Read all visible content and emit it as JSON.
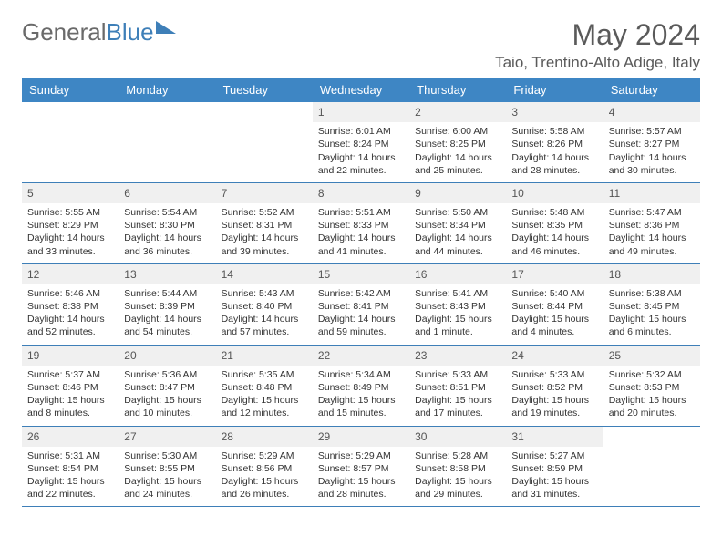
{
  "brand": {
    "part1": "General",
    "part2": "Blue"
  },
  "title": "May 2024",
  "location": "Taio, Trentino-Alto Adige, Italy",
  "colors": {
    "header_bg": "#3e86c4",
    "header_text": "#ffffff",
    "rule": "#3e7fb8",
    "daynum_bg": "#f0f0f0",
    "text": "#333333"
  },
  "dayNames": [
    "Sunday",
    "Monday",
    "Tuesday",
    "Wednesday",
    "Thursday",
    "Friday",
    "Saturday"
  ],
  "weeks": [
    [
      {
        "empty": true
      },
      {
        "empty": true
      },
      {
        "empty": true
      },
      {
        "n": "1",
        "sr": "Sunrise: 6:01 AM",
        "ss": "Sunset: 8:24 PM",
        "dl": "Daylight: 14 hours and 22 minutes."
      },
      {
        "n": "2",
        "sr": "Sunrise: 6:00 AM",
        "ss": "Sunset: 8:25 PM",
        "dl": "Daylight: 14 hours and 25 minutes."
      },
      {
        "n": "3",
        "sr": "Sunrise: 5:58 AM",
        "ss": "Sunset: 8:26 PM",
        "dl": "Daylight: 14 hours and 28 minutes."
      },
      {
        "n": "4",
        "sr": "Sunrise: 5:57 AM",
        "ss": "Sunset: 8:27 PM",
        "dl": "Daylight: 14 hours and 30 minutes."
      }
    ],
    [
      {
        "n": "5",
        "sr": "Sunrise: 5:55 AM",
        "ss": "Sunset: 8:29 PM",
        "dl": "Daylight: 14 hours and 33 minutes."
      },
      {
        "n": "6",
        "sr": "Sunrise: 5:54 AM",
        "ss": "Sunset: 8:30 PM",
        "dl": "Daylight: 14 hours and 36 minutes."
      },
      {
        "n": "7",
        "sr": "Sunrise: 5:52 AM",
        "ss": "Sunset: 8:31 PM",
        "dl": "Daylight: 14 hours and 39 minutes."
      },
      {
        "n": "8",
        "sr": "Sunrise: 5:51 AM",
        "ss": "Sunset: 8:33 PM",
        "dl": "Daylight: 14 hours and 41 minutes."
      },
      {
        "n": "9",
        "sr": "Sunrise: 5:50 AM",
        "ss": "Sunset: 8:34 PM",
        "dl": "Daylight: 14 hours and 44 minutes."
      },
      {
        "n": "10",
        "sr": "Sunrise: 5:48 AM",
        "ss": "Sunset: 8:35 PM",
        "dl": "Daylight: 14 hours and 46 minutes."
      },
      {
        "n": "11",
        "sr": "Sunrise: 5:47 AM",
        "ss": "Sunset: 8:36 PM",
        "dl": "Daylight: 14 hours and 49 minutes."
      }
    ],
    [
      {
        "n": "12",
        "sr": "Sunrise: 5:46 AM",
        "ss": "Sunset: 8:38 PM",
        "dl": "Daylight: 14 hours and 52 minutes."
      },
      {
        "n": "13",
        "sr": "Sunrise: 5:44 AM",
        "ss": "Sunset: 8:39 PM",
        "dl": "Daylight: 14 hours and 54 minutes."
      },
      {
        "n": "14",
        "sr": "Sunrise: 5:43 AM",
        "ss": "Sunset: 8:40 PM",
        "dl": "Daylight: 14 hours and 57 minutes."
      },
      {
        "n": "15",
        "sr": "Sunrise: 5:42 AM",
        "ss": "Sunset: 8:41 PM",
        "dl": "Daylight: 14 hours and 59 minutes."
      },
      {
        "n": "16",
        "sr": "Sunrise: 5:41 AM",
        "ss": "Sunset: 8:43 PM",
        "dl": "Daylight: 15 hours and 1 minute."
      },
      {
        "n": "17",
        "sr": "Sunrise: 5:40 AM",
        "ss": "Sunset: 8:44 PM",
        "dl": "Daylight: 15 hours and 4 minutes."
      },
      {
        "n": "18",
        "sr": "Sunrise: 5:38 AM",
        "ss": "Sunset: 8:45 PM",
        "dl": "Daylight: 15 hours and 6 minutes."
      }
    ],
    [
      {
        "n": "19",
        "sr": "Sunrise: 5:37 AM",
        "ss": "Sunset: 8:46 PM",
        "dl": "Daylight: 15 hours and 8 minutes."
      },
      {
        "n": "20",
        "sr": "Sunrise: 5:36 AM",
        "ss": "Sunset: 8:47 PM",
        "dl": "Daylight: 15 hours and 10 minutes."
      },
      {
        "n": "21",
        "sr": "Sunrise: 5:35 AM",
        "ss": "Sunset: 8:48 PM",
        "dl": "Daylight: 15 hours and 12 minutes."
      },
      {
        "n": "22",
        "sr": "Sunrise: 5:34 AM",
        "ss": "Sunset: 8:49 PM",
        "dl": "Daylight: 15 hours and 15 minutes."
      },
      {
        "n": "23",
        "sr": "Sunrise: 5:33 AM",
        "ss": "Sunset: 8:51 PM",
        "dl": "Daylight: 15 hours and 17 minutes."
      },
      {
        "n": "24",
        "sr": "Sunrise: 5:33 AM",
        "ss": "Sunset: 8:52 PM",
        "dl": "Daylight: 15 hours and 19 minutes."
      },
      {
        "n": "25",
        "sr": "Sunrise: 5:32 AM",
        "ss": "Sunset: 8:53 PM",
        "dl": "Daylight: 15 hours and 20 minutes."
      }
    ],
    [
      {
        "n": "26",
        "sr": "Sunrise: 5:31 AM",
        "ss": "Sunset: 8:54 PM",
        "dl": "Daylight: 15 hours and 22 minutes."
      },
      {
        "n": "27",
        "sr": "Sunrise: 5:30 AM",
        "ss": "Sunset: 8:55 PM",
        "dl": "Daylight: 15 hours and 24 minutes."
      },
      {
        "n": "28",
        "sr": "Sunrise: 5:29 AM",
        "ss": "Sunset: 8:56 PM",
        "dl": "Daylight: 15 hours and 26 minutes."
      },
      {
        "n": "29",
        "sr": "Sunrise: 5:29 AM",
        "ss": "Sunset: 8:57 PM",
        "dl": "Daylight: 15 hours and 28 minutes."
      },
      {
        "n": "30",
        "sr": "Sunrise: 5:28 AM",
        "ss": "Sunset: 8:58 PM",
        "dl": "Daylight: 15 hours and 29 minutes."
      },
      {
        "n": "31",
        "sr": "Sunrise: 5:27 AM",
        "ss": "Sunset: 8:59 PM",
        "dl": "Daylight: 15 hours and 31 minutes."
      },
      {
        "empty": true
      }
    ]
  ]
}
